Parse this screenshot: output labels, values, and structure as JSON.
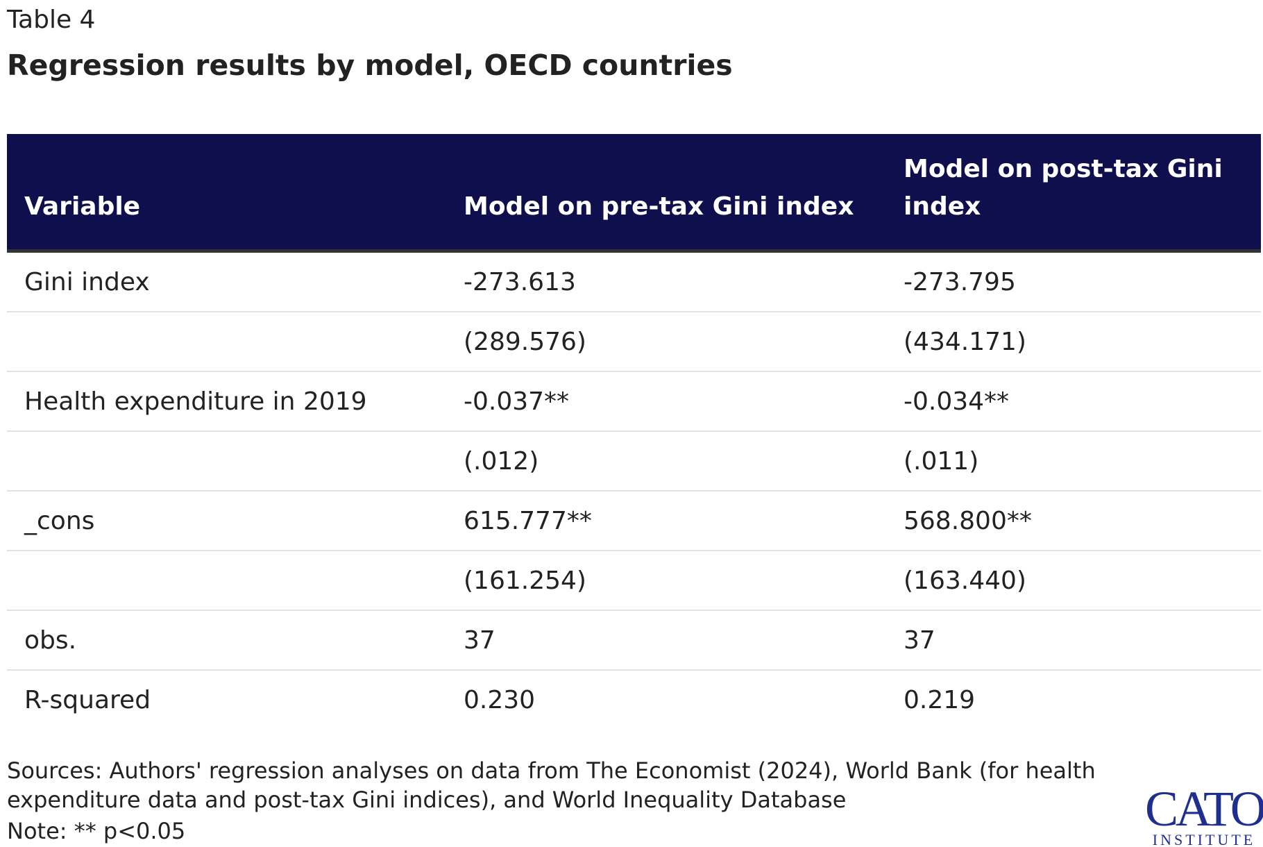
{
  "header": {
    "label": "Table 4",
    "title": "Regression results by model, OECD countries"
  },
  "table": {
    "columns": [
      "Variable",
      "Model on pre-tax Gini index",
      "Model on post-tax Gini index"
    ],
    "rows": [
      [
        "Gini index",
        "-273.613",
        "-273.795"
      ],
      [
        null,
        "(289.576)",
        "(434.171)"
      ],
      [
        "Health expenditure in 2019",
        "-0.037**",
        "-0.034**"
      ],
      [
        null,
        "(.012)",
        "(.011)"
      ],
      [
        "_cons",
        "615.777**",
        "568.800**"
      ],
      [
        null,
        "(161.254)",
        "(163.440)"
      ],
      [
        "obs.",
        "37",
        "37"
      ],
      [
        "R-squared",
        "0.230",
        "0.219"
      ]
    ]
  },
  "footer": {
    "sources": "Sources: Authors' regression analyses on data from The Economist (2024), World Bank (for health expenditure data and post-tax Gini indices), and World Inequality Database",
    "note": "Note: ** p<0.05",
    "logo": {
      "name": "CATO",
      "subtitle": "INSTITUTE"
    }
  }
}
